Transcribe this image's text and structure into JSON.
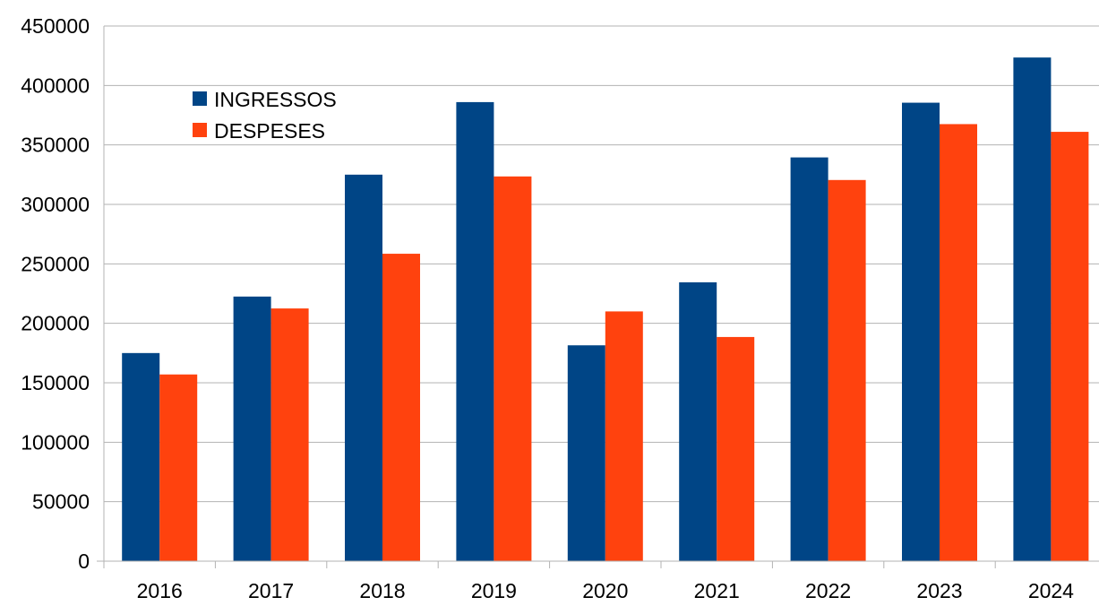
{
  "chart_data": {
    "type": "bar",
    "title": "",
    "xlabel": "",
    "ylabel": "",
    "categories": [
      "2016",
      "2017",
      "2018",
      "2019",
      "2020",
      "2021",
      "2022",
      "2023",
      "2024"
    ],
    "series": [
      {
        "name": "INGRESSOS",
        "color": "#004586",
        "values": [
          175000,
          222500,
          325000,
          386000,
          181500,
          234500,
          339500,
          385500,
          423500
        ]
      },
      {
        "name": "DESPESES",
        "color": "#ff420e",
        "values": [
          157000,
          212500,
          258500,
          323500,
          210000,
          188500,
          320500,
          367500,
          361000
        ]
      }
    ],
    "ylim": [
      0,
      450000
    ],
    "yticks": [
      "0",
      "50000",
      "100000",
      "150000",
      "200000",
      "250000",
      "300000",
      "350000",
      "400000",
      "450000"
    ],
    "grid": true,
    "legend_position": "top-left"
  }
}
